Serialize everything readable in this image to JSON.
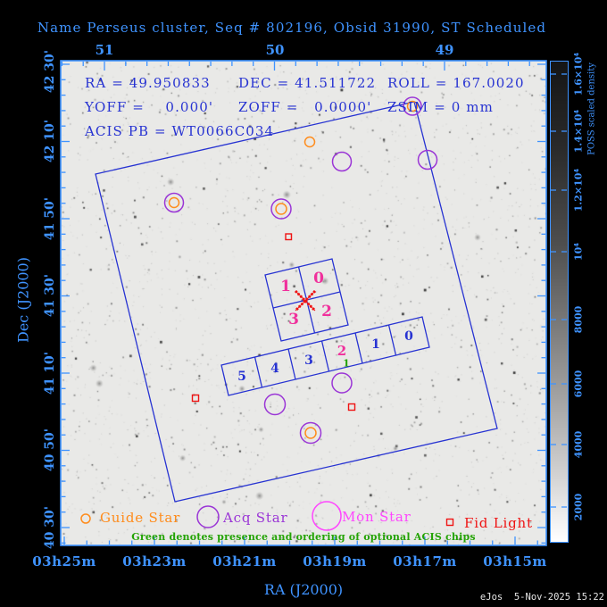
{
  "title": "Name Perseus cluster, Seq # 802196, Obsid 31990, ST Scheduled",
  "info": {
    "ra": "RA = 49.950833",
    "dec": "DEC = 41.511722",
    "roll": "ROLL = 167.0020",
    "yoff": "YOFF =    0.000'",
    "zoff": "ZOFF =   0.0000'",
    "zsim": "ZSIM = 0 mm",
    "acis_pb": "ACIS PB = WT0066C034"
  },
  "axes": {
    "top": {
      "labels": [
        "51",
        "50",
        "49"
      ]
    },
    "left": {
      "title": "Dec (J2000)",
      "labels": [
        "42 30'",
        "42 10'",
        "41 50'",
        "41 30'",
        "41 10'",
        "40 50'",
        "40 30'"
      ]
    },
    "bottom": {
      "title": "RA (J2000)",
      "labels": [
        "03h25m",
        "03h23m",
        "03h21m",
        "03h19m",
        "03h17m",
        "03h15m"
      ]
    }
  },
  "colorbar": {
    "title": "POSS scaled density",
    "labels": [
      "2000",
      "4000",
      "6000",
      "8000",
      "10⁴",
      "1.2×10⁴",
      "1.4×10⁴",
      "1.6×10⁴"
    ]
  },
  "acis_i": {
    "chips": [
      "1",
      "0",
      "3",
      "2"
    ]
  },
  "acis_s": {
    "chips": [
      "5",
      "4",
      "3",
      "2",
      "1",
      "0"
    ],
    "optional_order": "1"
  },
  "legend": {
    "guide": "Guide Star",
    "acq": "Acq Star",
    "mon": "Mon Star",
    "fid": "Fid Light",
    "note": "Green denotes presence and ordering of optional ACIS chips"
  },
  "status": {
    "stamp": "eJos  5-Nov-2025 15:22"
  },
  "colors": {
    "axisblue": "#3f93ff",
    "inkblue": "#2733d2",
    "pink": "#f0309c",
    "purple": "#9a35d6",
    "monmag": "#ff45ff",
    "orange": "#ff8c1c",
    "red": "#ef1313",
    "green": "#23a303"
  }
}
